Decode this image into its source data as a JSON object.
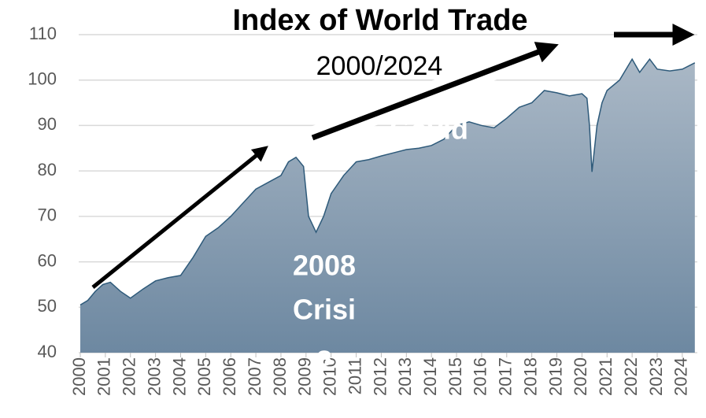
{
  "chart_data": {
    "type": "area",
    "title": "Index of World Trade",
    "subtitle": "2000/2024",
    "annotations": [
      "2008",
      "Crisi",
      "s",
      "Covid"
    ],
    "x": [
      2000,
      2000.3,
      2000.6,
      2000.9,
      2001.2,
      2001.6,
      2002,
      2002.5,
      2003,
      2003.5,
      2004,
      2004.5,
      2005,
      2005.5,
      2006,
      2006.5,
      2007,
      2007.5,
      2008,
      2008.3,
      2008.6,
      2008.9,
      2009.1,
      2009.4,
      2009.7,
      2010,
      2010.5,
      2011,
      2011.5,
      2012,
      2012.5,
      2013,
      2013.5,
      2014,
      2014.5,
      2015,
      2015.5,
      2016,
      2016.5,
      2017,
      2017.5,
      2018,
      2018.5,
      2019,
      2019.5,
      2020,
      2020.2,
      2020.3,
      2020.4,
      2020.6,
      2020.8,
      2021,
      2021.5,
      2022,
      2022.3,
      2022.7,
      2023,
      2023.5,
      2024,
      2024.5
    ],
    "values": [
      50.5,
      51.5,
      53.5,
      55,
      55.5,
      53.5,
      52,
      54,
      55.8,
      56.5,
      57,
      61,
      65.6,
      67.5,
      70,
      73,
      76,
      77.5,
      79,
      82,
      83,
      81,
      70,
      66.5,
      70,
      75,
      79,
      82,
      82.5,
      83.3,
      84,
      84.7,
      85,
      85.6,
      87,
      90,
      90.8,
      90,
      89.5,
      91.6,
      94,
      95,
      97.7,
      97.2,
      96.5,
      97,
      96,
      90,
      79.8,
      90,
      95,
      97.7,
      100,
      104.6,
      101.7,
      104.6,
      102.4,
      102,
      102.4,
      103.8
    ],
    "color": "#7f97ad",
    "line_color": "#2e5a7a",
    "xlim": [
      2000,
      2024.6
    ],
    "xticks": [
      2000,
      2001,
      2002,
      2003,
      2004,
      2005,
      2006,
      2007,
      2008,
      2009,
      2010,
      2011,
      2012,
      2013,
      2014,
      2015,
      2016,
      2017,
      2018,
      2019,
      2020,
      2021,
      2022,
      2023,
      2024
    ],
    "ylim": [
      40,
      110
    ],
    "yticks": [
      40,
      50,
      60,
      70,
      80,
      90,
      100,
      110
    ],
    "grid": true
  }
}
